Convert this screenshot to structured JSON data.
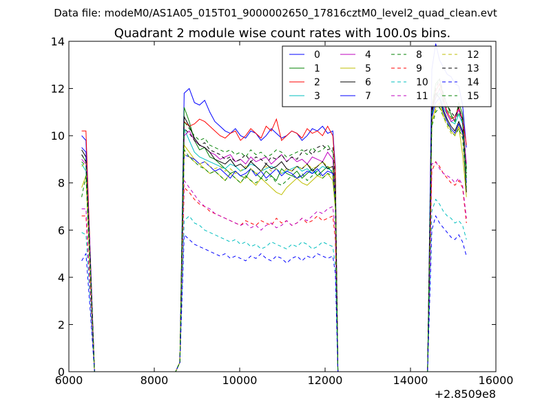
{
  "suptitle": "Data file: modeM0/AS1A05_015T01_9000002650_17816cztM0_level2_quad_clean.evt",
  "chart_data": {
    "type": "line",
    "title": "Quadrant 2 module wise count rates with 100.0s bins.",
    "xlabel": "",
    "ylabel": "",
    "x_offset_label": "+2.8509e8",
    "xlim": [
      6000,
      16000
    ],
    "ylim": [
      0,
      14
    ],
    "x_ticks": [
      "6000",
      "8000",
      "10000",
      "12000",
      "14000",
      "16000"
    ],
    "y_ticks": [
      "0",
      "2",
      "4",
      "6",
      "8",
      "10",
      "12",
      "14"
    ],
    "grid": false,
    "legend_placement": "top-right",
    "series": [
      {
        "name": "0",
        "color": "#0000ff",
        "style": "solid",
        "seg1": [
          10.0,
          9.8,
          5.0
        ],
        "seg2": [
          11.8,
          12.0,
          11.4,
          11.3,
          11.5,
          11.0,
          10.6,
          10.4,
          10.2,
          10.1,
          10.3,
          10.0,
          9.9,
          10.2,
          10.1,
          9.8,
          10.0,
          10.3,
          10.1,
          9.9,
          10.0,
          10.2,
          10.1,
          9.8,
          10.0,
          10.3,
          10.2,
          10.4,
          10.1,
          10.2
        ],
        "seg3": [
          12.8,
          13.9,
          13.2,
          12.9,
          12.6,
          12.5,
          12.2,
          12.1,
          11.3,
          9.5
        ]
      },
      {
        "name": "1",
        "color": "#008000",
        "style": "solid",
        "seg1": [
          9.2,
          8.9,
          4.5
        ],
        "seg2": [
          11.2,
          10.6,
          9.8,
          9.4,
          9.5,
          9.1,
          9.0,
          8.8,
          8.6,
          8.4,
          8.5,
          8.3,
          8.2,
          8.6,
          8.4,
          8.2,
          8.5,
          8.3,
          8.1,
          8.6,
          8.4,
          8.3,
          8.5,
          8.2,
          8.4,
          8.6,
          8.3,
          8.5,
          8.7,
          8.4
        ],
        "seg3": [
          11.2,
          12.2,
          12.4,
          11.7,
          11.3,
          10.9,
          10.6,
          11.4,
          10.9,
          8.6
        ]
      },
      {
        "name": "2",
        "color": "#ff0000",
        "style": "solid",
        "seg1": [
          10.2,
          10.2,
          5.0
        ],
        "seg2": [
          10.6,
          10.4,
          10.5,
          10.7,
          10.6,
          10.4,
          10.2,
          10.0,
          9.9,
          10.1,
          10.2,
          9.8,
          10.0,
          10.3,
          10.1,
          9.9,
          10.4,
          10.2,
          10.7,
          9.8,
          10.0,
          10.2,
          10.1,
          9.9,
          10.3,
          10.1,
          10.2,
          10.0,
          10.4,
          10.0
        ],
        "seg3": [
          11.1,
          11.9,
          12.2,
          11.6,
          11.0,
          10.7,
          10.8,
          11.2,
          10.7,
          9.6
        ]
      },
      {
        "name": "3",
        "color": "#00bfbf",
        "style": "solid",
        "seg1": [
          8.8,
          8.5,
          4.4
        ],
        "seg2": [
          10.3,
          9.8,
          9.3,
          9.1,
          9.0,
          8.9,
          8.8,
          8.7,
          8.6,
          8.8,
          8.7,
          8.5,
          8.6,
          8.8,
          8.7,
          8.5,
          8.6,
          8.7,
          8.6,
          8.4,
          8.5,
          8.6,
          8.7,
          8.5,
          8.6,
          8.4,
          8.5,
          8.7,
          8.6,
          8.5
        ],
        "seg3": [
          10.9,
          11.6,
          11.8,
          11.2,
          10.9,
          10.6,
          10.5,
          10.9,
          10.5,
          8.4
        ]
      },
      {
        "name": "4",
        "color": "#bf00bf",
        "style": "solid",
        "seg1": [
          9.0,
          8.8,
          4.6
        ],
        "seg2": [
          10.0,
          10.2,
          9.8,
          9.6,
          9.5,
          9.3,
          9.2,
          9.0,
          9.1,
          9.2,
          8.9,
          9.0,
          8.8,
          9.1,
          8.9,
          9.0,
          9.1,
          8.8,
          9.0,
          9.2,
          8.9,
          9.1,
          8.9,
          9.0,
          8.8,
          9.1,
          9.0,
          8.9,
          9.3,
          9.0
        ],
        "seg3": [
          11.0,
          11.6,
          12.0,
          11.4,
          10.9,
          10.6,
          10.7,
          11.1,
          10.6,
          8.8
        ]
      },
      {
        "name": "5",
        "color": "#bfbf00",
        "style": "solid",
        "seg1": [
          7.8,
          8.3,
          4.2
        ],
        "seg2": [
          9.6,
          9.3,
          9.0,
          8.8,
          8.6,
          8.4,
          8.5,
          8.3,
          8.1,
          8.4,
          8.2,
          8.0,
          8.3,
          8.1,
          7.9,
          8.2,
          8.0,
          7.8,
          7.6,
          7.5,
          7.8,
          8.0,
          8.2,
          8.0,
          7.9,
          8.1,
          8.3,
          8.2,
          8.4,
          8.1
        ],
        "seg3": [
          10.6,
          11.2,
          11.4,
          10.9,
          10.6,
          10.2,
          10.0,
          10.4,
          9.2,
          7.4
        ]
      },
      {
        "name": "6",
        "color": "#000000",
        "style": "solid",
        "seg1": [
          9.4,
          9.1,
          4.7
        ],
        "seg2": [
          10.8,
          10.4,
          9.9,
          9.6,
          9.5,
          9.3,
          9.0,
          8.9,
          8.8,
          9.0,
          8.7,
          8.8,
          8.6,
          8.9,
          8.7,
          8.5,
          8.8,
          8.6,
          8.7,
          8.9,
          8.6,
          8.5,
          8.7,
          8.6,
          8.8,
          8.5,
          8.7,
          8.9,
          8.6,
          8.7
        ],
        "seg3": [
          11.0,
          11.8,
          11.6,
          11.1,
          10.7,
          10.4,
          10.2,
          10.6,
          10.2,
          7.6
        ]
      },
      {
        "name": "7",
        "color": "#0000ff",
        "style": "solid",
        "seg1": [
          9.5,
          9.3,
          4.8
        ],
        "seg2": [
          9.2,
          9.1,
          9.0,
          8.8,
          8.9,
          8.7,
          8.5,
          8.6,
          8.4,
          8.2,
          8.5,
          8.3,
          8.4,
          8.6,
          8.3,
          8.5,
          8.2,
          8.4,
          8.6,
          8.3,
          8.5,
          8.4,
          8.2,
          8.3,
          8.5,
          8.4,
          8.6,
          8.3,
          8.5,
          8.4
        ],
        "seg3": [
          10.8,
          11.4,
          11.6,
          11.0,
          10.6,
          10.3,
          10.1,
          10.5,
          10.1,
          8.0
        ]
      },
      {
        "name": "8",
        "color": "#008000",
        "style": "dashed",
        "seg1": [
          7.4,
          8.3,
          4.2
        ],
        "seg2": [
          9.4,
          9.1,
          8.9,
          8.7,
          8.6,
          8.4,
          8.5,
          8.3,
          8.1,
          8.4,
          8.2,
          8.0,
          8.3,
          8.1,
          8.0,
          8.2,
          8.1,
          8.3,
          8.0,
          7.9,
          8.1,
          8.3,
          8.2,
          8.4,
          8.1,
          8.3,
          8.5,
          8.2,
          8.4,
          8.3
        ],
        "seg3": [
          10.4,
          11.0,
          11.2,
          10.8,
          10.5,
          10.2,
          10.0,
          10.3,
          9.9,
          7.8
        ]
      },
      {
        "name": "9",
        "color": "#ff0000",
        "style": "dashed",
        "seg1": [
          6.6,
          6.6,
          3.4
        ],
        "seg2": [
          7.8,
          7.6,
          7.3,
          7.1,
          7.0,
          6.8,
          6.7,
          6.6,
          6.5,
          6.4,
          6.3,
          6.2,
          6.4,
          6.3,
          6.2,
          6.4,
          6.3,
          6.2,
          6.5,
          6.3,
          6.4,
          6.2,
          6.3,
          6.5,
          6.3,
          6.4,
          6.6,
          6.4,
          6.5,
          6.6
        ],
        "seg3": [
          8.5,
          8.9,
          8.7,
          8.4,
          8.2,
          8.0,
          7.9,
          8.1,
          7.8,
          6.3
        ]
      },
      {
        "name": "10",
        "color": "#00bfbf",
        "style": "dashed",
        "seg1": [
          5.9,
          5.8,
          3.0
        ],
        "seg2": [
          6.4,
          6.6,
          6.3,
          6.2,
          6.0,
          5.9,
          5.8,
          5.7,
          5.6,
          5.5,
          5.6,
          5.4,
          5.5,
          5.3,
          5.4,
          5.2,
          5.3,
          5.5,
          5.4,
          5.3,
          5.2,
          5.4,
          5.3,
          5.5,
          5.4,
          5.2,
          5.3,
          5.5,
          5.4,
          5.3
        ],
        "seg3": [
          6.8,
          7.3,
          7.1,
          6.8,
          6.6,
          6.5,
          6.3,
          6.4,
          6.2,
          5.6
        ]
      },
      {
        "name": "11",
        "color": "#bf00bf",
        "style": "dashed",
        "seg1": [
          6.9,
          6.9,
          3.5
        ],
        "seg2": [
          8.1,
          7.8,
          7.5,
          7.2,
          7.0,
          6.9,
          6.7,
          6.6,
          6.5,
          6.4,
          6.3,
          6.2,
          6.3,
          6.1,
          6.2,
          6.0,
          6.2,
          6.3,
          6.1,
          6.2,
          6.4,
          6.2,
          6.3,
          6.5,
          6.4,
          6.6,
          6.8,
          6.7,
          6.9,
          7.0
        ],
        "seg3": [
          8.8,
          8.9,
          8.6,
          8.4,
          8.3,
          8.2,
          8.0,
          8.2,
          7.9,
          6.5
        ]
      },
      {
        "name": "12",
        "color": "#bfbf00",
        "style": "dashed",
        "seg1": [
          8.7,
          8.9,
          4.5
        ],
        "seg2": [
          9.2,
          9.1,
          8.9,
          8.8,
          8.9,
          8.7,
          8.6,
          8.7,
          8.5,
          8.6,
          8.4,
          8.5,
          8.7,
          8.6,
          8.4,
          8.5,
          8.7,
          8.5,
          8.6,
          8.4,
          8.6,
          8.5,
          8.7,
          8.6,
          8.8,
          8.6,
          8.7,
          8.9,
          8.7,
          8.6
        ],
        "seg3": [
          10.5,
          11.1,
          11.3,
          10.8,
          10.4,
          10.1,
          10.0,
          10.4,
          10.0,
          8.2
        ]
      },
      {
        "name": "13",
        "color": "#000000",
        "style": "dashed",
        "seg1": [
          9.2,
          8.9,
          4.6
        ],
        "seg2": [
          10.3,
          10.1,
          9.8,
          9.6,
          9.7,
          9.4,
          9.3,
          9.2,
          9.0,
          9.1,
          8.9,
          9.0,
          9.2,
          8.9,
          9.1,
          9.0,
          8.8,
          9.1,
          9.0,
          9.2,
          8.9,
          9.1,
          9.0,
          9.3,
          9.4,
          9.2,
          9.5,
          9.6,
          9.4,
          9.5
        ],
        "seg3": [
          11.2,
          12.0,
          12.4,
          11.8,
          11.3,
          11.0,
          10.8,
          11.2,
          10.7,
          8.4
        ]
      },
      {
        "name": "14",
        "color": "#0000ff",
        "style": "dashed",
        "seg1": [
          4.7,
          5.0,
          2.6
        ],
        "seg2": [
          5.8,
          5.6,
          5.4,
          5.3,
          5.2,
          5.1,
          5.0,
          4.9,
          5.0,
          4.8,
          4.9,
          4.8,
          4.7,
          4.9,
          4.8,
          5.0,
          4.8,
          4.7,
          4.9,
          4.8,
          4.6,
          4.8,
          4.9,
          4.7,
          4.9,
          4.8,
          5.0,
          4.9,
          4.8,
          4.9
        ],
        "seg3": [
          6.0,
          6.6,
          6.3,
          6.1,
          5.9,
          5.7,
          5.6,
          5.8,
          5.5,
          4.9
        ]
      },
      {
        "name": "15",
        "color": "#008000",
        "style": "dashed",
        "seg1": [
          8.9,
          8.7,
          4.4
        ],
        "seg2": [
          10.6,
          10.3,
          10.0,
          9.8,
          9.9,
          9.6,
          9.5,
          9.4,
          9.3,
          9.4,
          9.2,
          9.3,
          9.1,
          9.4,
          9.2,
          9.3,
          9.1,
          9.2,
          9.4,
          9.3,
          9.1,
          9.2,
          9.3,
          9.4,
          9.2,
          9.5,
          9.3,
          9.4,
          9.6,
          9.3
        ],
        "seg3": [
          11.0,
          11.7,
          12.0,
          11.5,
          11.1,
          10.8,
          10.6,
          11.0,
          10.6,
          8.2
        ]
      }
    ],
    "segments": {
      "seg1_x": [
        6300,
        6400,
        6500
      ],
      "gap1_x": [
        6600,
        8500
      ],
      "seg2_x_start": 8700,
      "seg2_step": 120,
      "gap2_x": [
        12300,
        14400
      ],
      "seg3_x_start": 14500,
      "seg3_step": 90
    }
  }
}
